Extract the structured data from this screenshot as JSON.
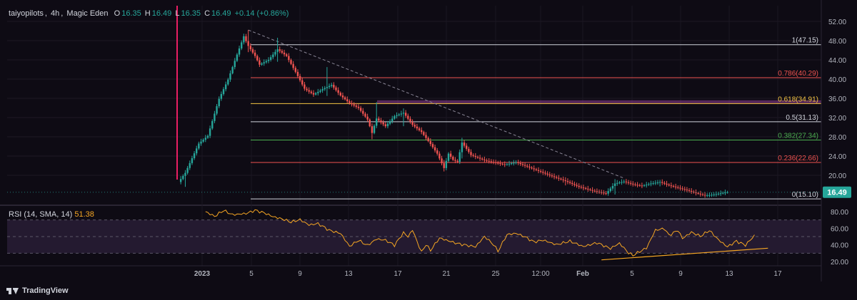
{
  "header": {
    "symbol": "taiyopilots",
    "interval": "4h",
    "exchange": "Magic Eden",
    "open_label": "O",
    "open": "16.35",
    "high_label": "H",
    "high": "16.49",
    "low_label": "L",
    "low": "16.35",
    "close_label": "C",
    "close": "16.49",
    "change": "+0.14 (+0.86%)"
  },
  "rsi_header": {
    "label": "RSI (14, SMA, 14)",
    "value": "51.38"
  },
  "brand": "TradingView",
  "colors": {
    "background": "#0e0b14",
    "up": "#26a69a",
    "down": "#ef5350",
    "rsi_line": "#f5a623",
    "price_badge": "#26a69a"
  },
  "chart_data": [
    {
      "type": "candlestick",
      "x_tick_labels": [
        "2023",
        "5",
        "9",
        "13",
        "17",
        "21",
        "25",
        "12:00",
        "Feb",
        "5",
        "9",
        "13",
        "17"
      ],
      "y_tick_labels": [
        "52.00",
        "48.00",
        "44.00",
        "40.00",
        "36.00",
        "32.00",
        "28.00",
        "24.00",
        "20.00"
      ],
      "ylim": [
        15.0,
        53.5
      ],
      "last_price": 16.49,
      "last_price_label": "16.49",
      "anchors": [
        [
          0,
          18.6
        ],
        [
          3,
          20.5
        ],
        [
          9,
          26.6
        ],
        [
          13,
          28.2
        ],
        [
          18,
          35.9
        ],
        [
          22,
          39.9
        ],
        [
          26,
          45.1
        ],
        [
          29,
          48.9
        ],
        [
          31,
          46.9
        ],
        [
          34,
          44.8
        ],
        [
          36,
          43.0
        ],
        [
          40,
          44.0
        ],
        [
          44,
          46.2
        ],
        [
          48,
          44.8
        ],
        [
          52,
          41.5
        ],
        [
          56,
          38.0
        ],
        [
          60,
          36.8
        ],
        [
          64,
          37.9
        ],
        [
          68,
          38.8
        ],
        [
          72,
          36.6
        ],
        [
          76,
          35.0
        ],
        [
          80,
          34.0
        ],
        [
          84,
          31.6
        ],
        [
          86,
          28.8
        ],
        [
          88,
          31.8
        ],
        [
          92,
          30.2
        ],
        [
          96,
          32.3
        ],
        [
          100,
          33.0
        ],
        [
          104,
          30.5
        ],
        [
          108,
          29.0
        ],
        [
          112,
          26.5
        ],
        [
          115,
          24.5
        ],
        [
          118,
          21.5
        ],
        [
          120,
          24.5
        ],
        [
          122,
          23.2
        ],
        [
          124,
          22.8
        ],
        [
          126,
          26.8
        ],
        [
          130,
          24.2
        ],
        [
          136,
          23.1
        ],
        [
          140,
          22.7
        ],
        [
          145,
          22.2
        ],
        [
          150,
          22.7
        ],
        [
          155,
          21.8
        ],
        [
          160,
          20.9
        ],
        [
          166,
          19.8
        ],
        [
          172,
          18.8
        ],
        [
          178,
          17.6
        ],
        [
          184,
          16.8
        ],
        [
          188,
          16.4
        ],
        [
          190,
          16.2
        ],
        [
          194,
          18.3
        ],
        [
          198,
          18.7
        ],
        [
          202,
          18.1
        ],
        [
          206,
          17.8
        ],
        [
          210,
          18.3
        ],
        [
          214,
          18.6
        ],
        [
          218,
          17.9
        ],
        [
          222,
          17.4
        ],
        [
          226,
          16.9
        ],
        [
          230,
          16.3
        ],
        [
          234,
          15.8
        ],
        [
          238,
          16.0
        ],
        [
          242,
          16.35
        ],
        [
          244,
          16.49
        ]
      ],
      "spikes": [
        {
          "i": 3,
          "high": 20.9,
          "low": 17.6
        },
        {
          "i": 31,
          "high": 50.2,
          "low": 45.6
        },
        {
          "i": 44,
          "high": 48.6,
          "low": 43.6
        },
        {
          "i": 66,
          "high": 42.5,
          "low": 36.5
        },
        {
          "i": 86,
          "high": 30.5,
          "low": 27.5
        },
        {
          "i": 88,
          "high": 35.2,
          "low": 29.8
        },
        {
          "i": 100,
          "high": 33.9,
          "low": 30.2
        },
        {
          "i": 118,
          "high": 23.2,
          "low": 20.8
        },
        {
          "i": 126,
          "high": 27.8,
          "low": 23.5
        },
        {
          "i": 172,
          "high": 19.6,
          "low": 17.9
        },
        {
          "i": 194,
          "high": 19.2,
          "low": 16.0
        },
        {
          "i": 214,
          "high": 19.0,
          "low": 17.7
        }
      ],
      "fibonacci": {
        "levels": [
          {
            "label": "1(47.15)",
            "price": 47.15,
            "color": "#d1d4dc"
          },
          {
            "label": "0.786(40.29)",
            "price": 40.29,
            "color": "#ef5350"
          },
          {
            "label": "0.618(34.91)",
            "price": 34.91,
            "color": "#f5c542"
          },
          {
            "label": "0.5(31.13)",
            "price": 31.13,
            "color": "#d1d4dc"
          },
          {
            "label": "0.382(27.34)",
            "price": 27.34,
            "color": "#4caf50"
          },
          {
            "label": "0.236(22.66)",
            "price": 22.66,
            "color": "#ef5350"
          },
          {
            "label": "0(15.10)",
            "price": 15.1,
            "color": "#d1d4dc"
          }
        ],
        "zone": [
          34.91,
          35.6
        ]
      },
      "trendline": {
        "from": [
          31,
          50.2
        ],
        "to": [
          198,
          19.4
        ]
      }
    },
    {
      "type": "line",
      "name": "RSI (14, SMA, 14)",
      "y_tick_labels": [
        "80.00",
        "60.00",
        "40.00",
        "20.00"
      ],
      "ylim": [
        12.0,
        86.0
      ],
      "bands": [
        30,
        70
      ],
      "anchors": [
        [
          0,
          80
        ],
        [
          4,
          74
        ],
        [
          8,
          81
        ],
        [
          12,
          76
        ],
        [
          18,
          78
        ],
        [
          22,
          82
        ],
        [
          26,
          79
        ],
        [
          30,
          74
        ],
        [
          34,
          71
        ],
        [
          38,
          67
        ],
        [
          42,
          70
        ],
        [
          46,
          64
        ],
        [
          50,
          66
        ],
        [
          55,
          58
        ],
        [
          60,
          54
        ],
        [
          64,
          38
        ],
        [
          68,
          45
        ],
        [
          72,
          39
        ],
        [
          76,
          47
        ],
        [
          80,
          46
        ],
        [
          84,
          40
        ],
        [
          88,
          55
        ],
        [
          90,
          50
        ],
        [
          92,
          58
        ],
        [
          94,
          44
        ],
        [
          96,
          31
        ],
        [
          98,
          40
        ],
        [
          100,
          33
        ],
        [
          104,
          48
        ],
        [
          108,
          45
        ],
        [
          112,
          42
        ],
        [
          116,
          40
        ],
        [
          120,
          38
        ],
        [
          124,
          50
        ],
        [
          128,
          40
        ],
        [
          130,
          32
        ],
        [
          134,
          52
        ],
        [
          138,
          54
        ],
        [
          142,
          50
        ],
        [
          146,
          44
        ],
        [
          150,
          46
        ],
        [
          156,
          40
        ],
        [
          162,
          44
        ],
        [
          168,
          38
        ],
        [
          174,
          43
        ],
        [
          180,
          36
        ],
        [
          184,
          42
        ],
        [
          188,
          30
        ],
        [
          190,
          27
        ],
        [
          192,
          30
        ],
        [
          196,
          36
        ],
        [
          200,
          58
        ],
        [
          204,
          60
        ],
        [
          206,
          52
        ],
        [
          210,
          58
        ],
        [
          212,
          48
        ],
        [
          216,
          55
        ],
        [
          220,
          50
        ],
        [
          224,
          57
        ],
        [
          228,
          46
        ],
        [
          232,
          38
        ],
        [
          236,
          45
        ],
        [
          240,
          40
        ],
        [
          244,
          51.38
        ]
      ],
      "trendline": {
        "from": [
          188,
          22
        ],
        "to": [
          262,
          36
        ]
      }
    }
  ]
}
